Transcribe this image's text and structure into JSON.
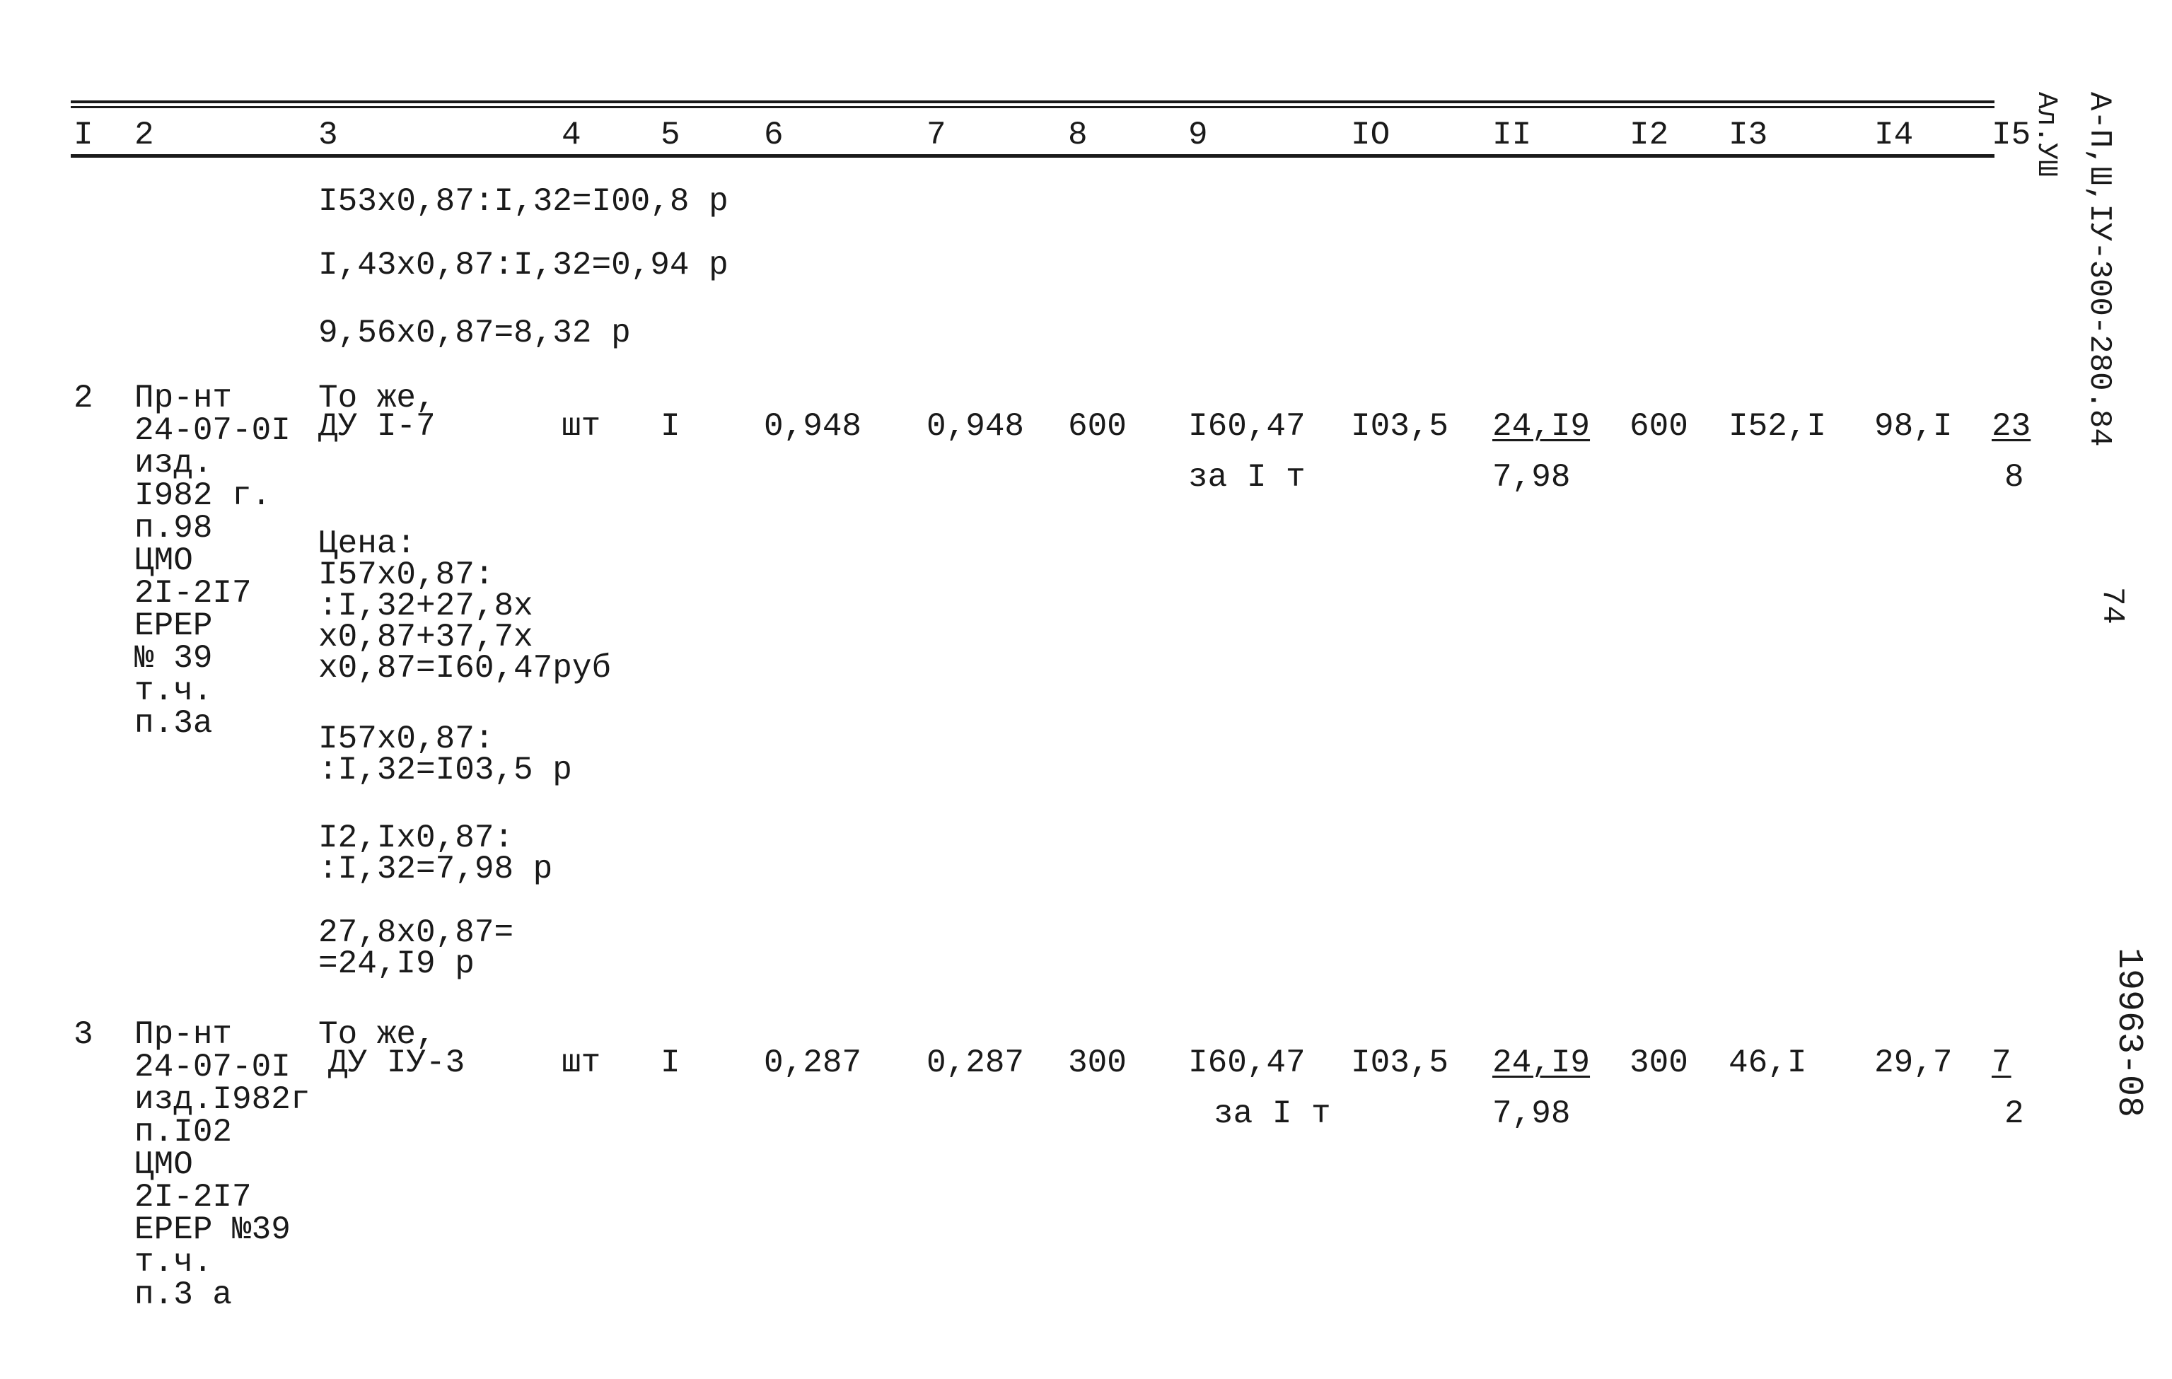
{
  "header": {
    "columns": [
      "I",
      "2",
      "3",
      "4",
      "5",
      "6",
      "7",
      "8",
      "9",
      "IO",
      "II",
      "I2",
      "I3",
      "I4",
      "I5"
    ]
  },
  "continuation": [
    "I53x0,87:I,32=I00,8 р",
    "I,43x0,87:I,32=0,94 р",
    "9,56x0,87=8,32 р"
  ],
  "rows": [
    {
      "num": "2",
      "source": [
        "Пр-нт",
        "24-07-0I",
        "изд.",
        "I982 г.",
        "п.98",
        "ЦМО",
        "2I-2I7",
        "ЕРЕР",
        "№ 39",
        "т.ч.",
        "п.3а"
      ],
      "name": [
        "То же,",
        "ДУ I-7"
      ],
      "unit": "шт",
      "qty": "I",
      "c6": "0,948",
      "c7": "0,948",
      "c8": "600",
      "c9": [
        "I60,47",
        "за I т"
      ],
      "c10": "I03,5",
      "c11": [
        "24,I9",
        "7,98"
      ],
      "c12": "600",
      "c13": "I52,I",
      "c14": "98,I",
      "c15": [
        "23",
        "8"
      ],
      "calc": [
        [
          "Цена:",
          "I57x0,87:",
          ":I,32+27,8x",
          "x0,87+37,7x",
          "x0,87=I60,47руб"
        ],
        [
          "I57x0,87:",
          ":I,32=I03,5 р"
        ],
        [
          "I2,Ix0,87:",
          ":I,32=7,98 р"
        ],
        [
          "27,8x0,87=",
          "=24,I9 р"
        ]
      ]
    },
    {
      "num": "3",
      "source": [
        "Пр-нт",
        "24-07-0I",
        "изд.I982г",
        "п.I02",
        "ЦМО",
        "2I-2I7",
        "ЕРЕР №39",
        "т.ч.",
        "п.3 а"
      ],
      "name": [
        "То же,",
        "ДУ IУ-3"
      ],
      "unit": "шт",
      "qty": "I",
      "c6": "0,287",
      "c7": "0,287",
      "c8": "300",
      "c9": [
        "I60,47",
        "за I т"
      ],
      "c10": "I03,5",
      "c11": [
        "24,I9",
        "7,98"
      ],
      "c12": "300",
      "c13": "46,I",
      "c14": "29,7",
      "c15": [
        "7",
        "2"
      ],
      "calc": []
    }
  ],
  "margin": {
    "code": "А-П,Ш,IУ-300-280.84",
    "sheet": "Ал.УШ",
    "page": "74",
    "inventory": "19963-08"
  }
}
